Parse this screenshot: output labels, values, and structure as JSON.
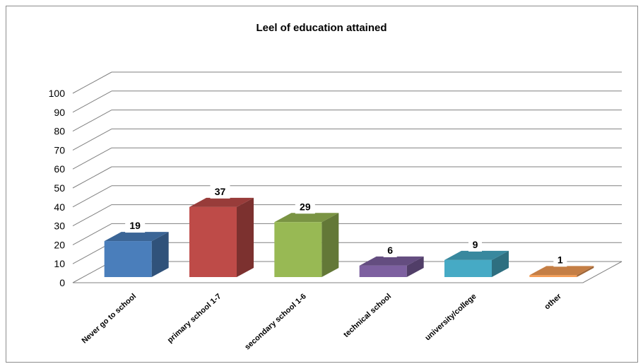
{
  "chart_data": {
    "type": "bar",
    "title": "Leel of education attained",
    "categories": [
      "Never go to school",
      "primary school 1-7",
      "secondary school 1-6",
      "technical school",
      "university/college",
      "other"
    ],
    "values": [
      19,
      37,
      29,
      6,
      9,
      1
    ],
    "colors": [
      "#4a7ebb",
      "#be4b48",
      "#98b954",
      "#7d60a0",
      "#46aac5",
      "#f59d56"
    ],
    "ylim": [
      0,
      100
    ],
    "yticks": [
      0,
      10,
      20,
      30,
      40,
      50,
      60,
      70,
      80,
      90,
      100
    ],
    "grid": true,
    "legend": "none",
    "style": "3d-column"
  }
}
